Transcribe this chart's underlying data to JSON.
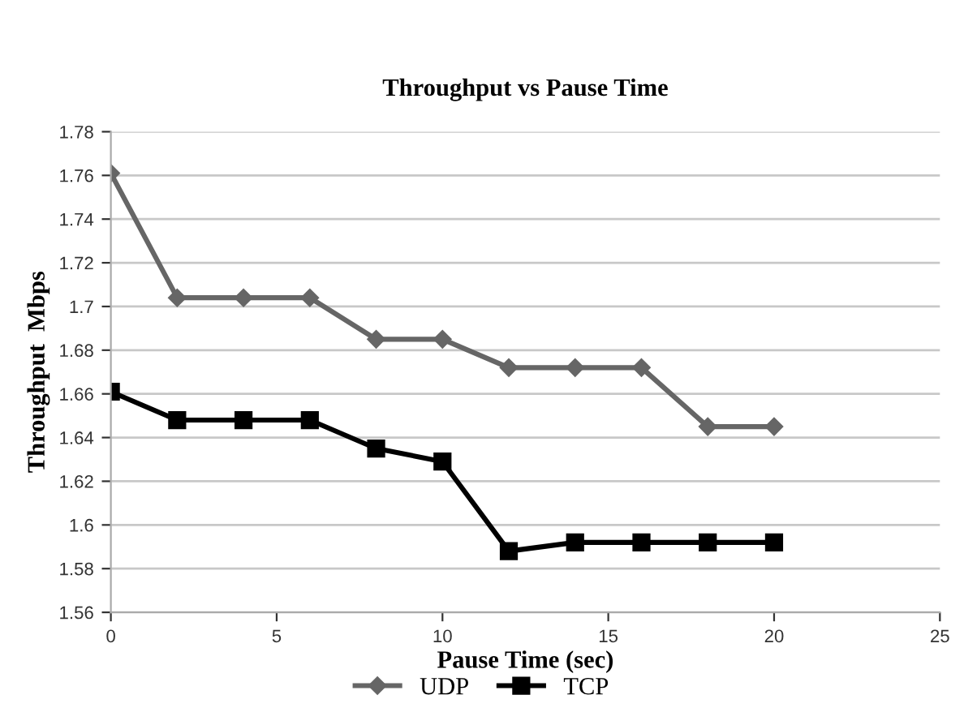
{
  "chart_data": {
    "type": "line",
    "title": "Throughput vs Pause Time",
    "xlabel": "Pause Time (sec)",
    "ylabel": "Throughput  Mbps",
    "x": [
      0,
      2,
      4,
      6,
      8,
      10,
      12,
      14,
      16,
      18,
      20
    ],
    "series": [
      {
        "name": "UDP",
        "color": "#666666",
        "marker": "diamond",
        "values": [
          1.761,
          1.704,
          1.704,
          1.704,
          1.685,
          1.685,
          1.672,
          1.672,
          1.672,
          1.645,
          1.645
        ]
      },
      {
        "name": "TCP",
        "color": "#000000",
        "marker": "square",
        "values": [
          1.661,
          1.648,
          1.648,
          1.648,
          1.635,
          1.629,
          1.588,
          1.592,
          1.592,
          1.592,
          1.592
        ]
      }
    ],
    "xlim": [
      0,
      25
    ],
    "xticks": [
      0,
      5,
      10,
      15,
      20,
      25
    ],
    "ylim": [
      1.56,
      1.78
    ],
    "yticks": [
      1.56,
      1.58,
      1.6,
      1.62,
      1.64,
      1.66,
      1.68,
      1.7,
      1.72,
      1.74,
      1.76,
      1.78
    ],
    "grid": "y",
    "legend": "bottom",
    "line_style": "solid"
  }
}
